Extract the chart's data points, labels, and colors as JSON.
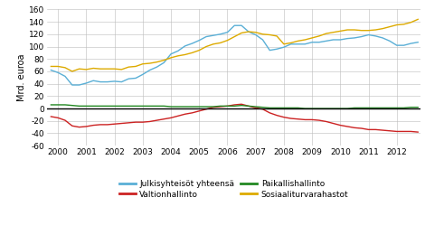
{
  "ylabel": "Mrd. euroa",
  "ylim": [
    -60,
    160
  ],
  "yticks": [
    -60,
    -40,
    -20,
    0,
    20,
    40,
    60,
    80,
    100,
    120,
    140,
    160
  ],
  "xlim": [
    1999.6,
    2012.85
  ],
  "xticks": [
    2000,
    2001,
    2002,
    2003,
    2004,
    2005,
    2006,
    2007,
    2008,
    2009,
    2010,
    2011,
    2012
  ],
  "legend_labels_left": [
    "Julkisyhteisöt yhteensä",
    "Paikallishallinto"
  ],
  "legend_labels_right": [
    "Valtionhallinto",
    "Sosiaaliturvarahastot"
  ],
  "colors": {
    "julkis": "#5AAFD6",
    "valtio": "#CC2222",
    "paikalli": "#228822",
    "sosiaali": "#DDAA00"
  },
  "julkis": [
    62,
    58,
    52,
    38,
    38,
    41,
    45,
    43,
    43,
    44,
    43,
    48,
    49,
    55,
    62,
    67,
    74,
    88,
    93,
    101,
    105,
    110,
    116,
    118,
    120,
    123,
    134,
    134,
    124,
    119,
    111,
    94,
    96,
    99,
    104,
    104,
    104,
    107,
    107,
    109,
    111,
    111,
    113,
    114,
    116,
    119,
    117,
    114,
    109,
    102,
    102,
    105,
    107
  ],
  "valtio": [
    -13,
    -15,
    -19,
    -28,
    -30,
    -29,
    -27,
    -26,
    -26,
    -25,
    -24,
    -23,
    -22,
    -22,
    -21,
    -19,
    -17,
    -15,
    -12,
    -9,
    -7,
    -4,
    -1,
    2,
    3,
    4,
    6,
    7,
    4,
    1,
    -1,
    -7,
    -11,
    -14,
    -16,
    -17,
    -18,
    -18,
    -19,
    -21,
    -24,
    -27,
    -29,
    -31,
    -32,
    -34,
    -34,
    -35,
    -36,
    -37,
    -37,
    -37,
    -38
  ],
  "paikalli": [
    6,
    6,
    6,
    5,
    4,
    4,
    4,
    4,
    4,
    4,
    4,
    4,
    4,
    4,
    4,
    4,
    4,
    3,
    3,
    3,
    3,
    3,
    3,
    3,
    4,
    4,
    4,
    5,
    4,
    3,
    2,
    1,
    1,
    1,
    1,
    1,
    0,
    0,
    0,
    0,
    0,
    0,
    0,
    1,
    1,
    1,
    1,
    1,
    1,
    1,
    1,
    2,
    2
  ],
  "sosiaali": [
    68,
    68,
    66,
    60,
    64,
    63,
    65,
    64,
    64,
    64,
    63,
    67,
    68,
    72,
    73,
    75,
    78,
    82,
    85,
    87,
    90,
    94,
    100,
    104,
    106,
    110,
    116,
    122,
    124,
    123,
    120,
    119,
    117,
    104,
    106,
    109,
    111,
    114,
    117,
    121,
    123,
    125,
    127,
    127,
    126,
    126,
    127,
    129,
    132,
    135,
    136,
    139,
    144
  ],
  "time_start": 1999.75,
  "time_end": 2012.75,
  "n_points": 53,
  "bg_color": "#ffffff",
  "grid_color": "#bbbbbb"
}
